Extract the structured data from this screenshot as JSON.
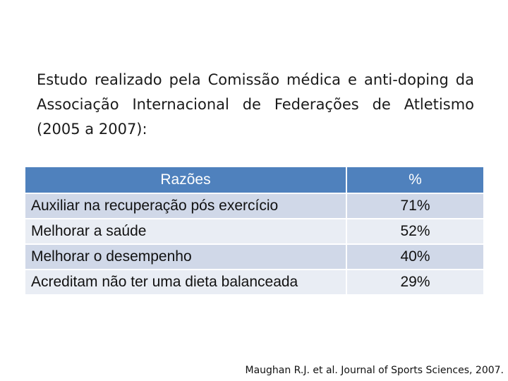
{
  "intro": {
    "text": "Estudo realizado pela Comissão médica e anti-doping da Associação Internacional de Federações de Atletismo (2005 a 2007):"
  },
  "table": {
    "headers": [
      "Razões",
      "%"
    ],
    "rows": [
      {
        "reason": "Auxiliar na recuperação pós exercício",
        "percent": "71%"
      },
      {
        "reason": "Melhorar a saúde",
        "percent": "52%"
      },
      {
        "reason": "Melhorar o desempenho",
        "percent": "40%"
      },
      {
        "reason": "Acreditam não ter uma dieta balanceada",
        "percent": "29%"
      }
    ],
    "colors": {
      "header_bg": "#4f81bd",
      "row_odd_bg": "#d0d8e8",
      "row_even_bg": "#e9edf4"
    }
  },
  "citation": {
    "text": "Maughan R.J. et al. Journal of Sports Sciences, 2007."
  }
}
